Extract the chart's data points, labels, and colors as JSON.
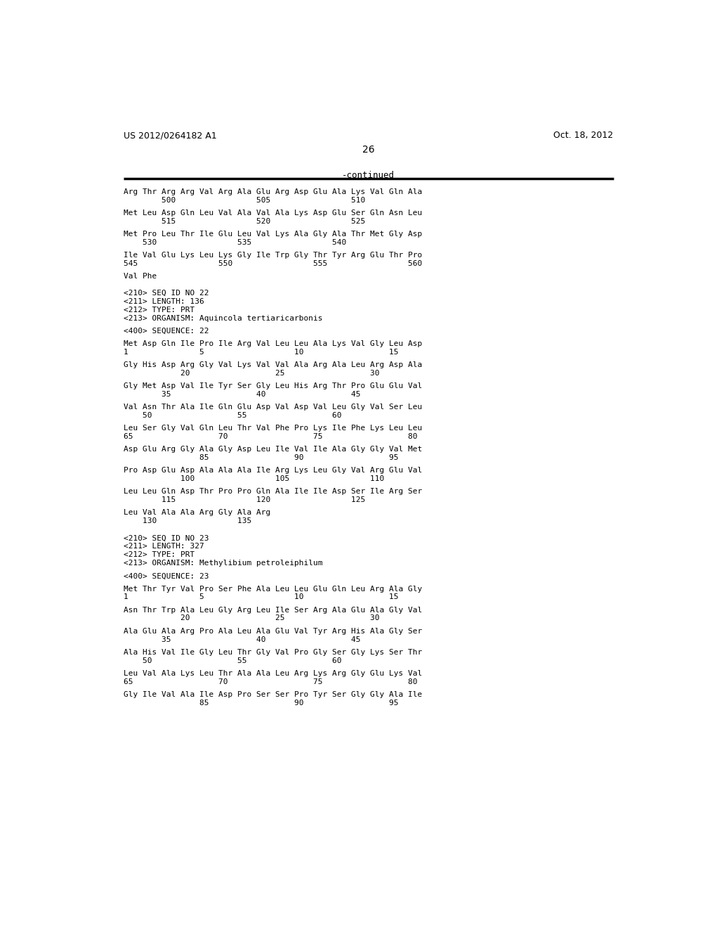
{
  "header_left": "US 2012/0264182 A1",
  "header_right": "Oct. 18, 2012",
  "page_number": "26",
  "continued_label": "-continued",
  "background_color": "#ffffff",
  "text_color": "#000000",
  "lines": [
    {
      "type": "seq",
      "text": "Arg Thr Arg Arg Val Arg Ala Glu Arg Asp Glu Ala Lys Val Gln Ala"
    },
    {
      "type": "num",
      "text": "        500                 505                 510"
    },
    {
      "type": "blank"
    },
    {
      "type": "seq",
      "text": "Met Leu Asp Gln Leu Val Ala Val Ala Lys Asp Glu Ser Gln Asn Leu"
    },
    {
      "type": "num",
      "text": "        515                 520                 525"
    },
    {
      "type": "blank"
    },
    {
      "type": "seq",
      "text": "Met Pro Leu Thr Ile Glu Leu Val Lys Ala Gly Ala Thr Met Gly Asp"
    },
    {
      "type": "num",
      "text": "    530                 535                 540"
    },
    {
      "type": "blank"
    },
    {
      "type": "seq",
      "text": "Ile Val Glu Lys Leu Lys Gly Ile Trp Gly Thr Tyr Arg Glu Thr Pro"
    },
    {
      "type": "num",
      "text": "545                 550                 555                 560"
    },
    {
      "type": "blank"
    },
    {
      "type": "seq",
      "text": "Val Phe"
    },
    {
      "type": "blank"
    },
    {
      "type": "blank"
    },
    {
      "type": "meta",
      "text": "<210> SEQ ID NO 22"
    },
    {
      "type": "meta",
      "text": "<211> LENGTH: 136"
    },
    {
      "type": "meta",
      "text": "<212> TYPE: PRT"
    },
    {
      "type": "meta",
      "text": "<213> ORGANISM: Aquincola tertiaricarbonis"
    },
    {
      "type": "blank"
    },
    {
      "type": "meta",
      "text": "<400> SEQUENCE: 22"
    },
    {
      "type": "blank"
    },
    {
      "type": "seq",
      "text": "Met Asp Gln Ile Pro Ile Arg Val Leu Leu Ala Lys Val Gly Leu Asp"
    },
    {
      "type": "num",
      "text": "1               5                   10                  15"
    },
    {
      "type": "blank"
    },
    {
      "type": "seq",
      "text": "Gly His Asp Arg Gly Val Lys Val Val Ala Arg Ala Leu Arg Asp Ala"
    },
    {
      "type": "num",
      "text": "            20                  25                  30"
    },
    {
      "type": "blank"
    },
    {
      "type": "seq",
      "text": "Gly Met Asp Val Ile Tyr Ser Gly Leu His Arg Thr Pro Glu Glu Val"
    },
    {
      "type": "num",
      "text": "        35                  40                  45"
    },
    {
      "type": "blank"
    },
    {
      "type": "seq",
      "text": "Val Asn Thr Ala Ile Gln Glu Asp Val Asp Val Leu Gly Val Ser Leu"
    },
    {
      "type": "num",
      "text": "    50                  55                  60"
    },
    {
      "type": "blank"
    },
    {
      "type": "seq",
      "text": "Leu Ser Gly Val Gln Leu Thr Val Phe Pro Lys Ile Phe Lys Leu Leu"
    },
    {
      "type": "num",
      "text": "65                  70                  75                  80"
    },
    {
      "type": "blank"
    },
    {
      "type": "seq",
      "text": "Asp Glu Arg Gly Ala Gly Asp Leu Ile Val Ile Ala Gly Gly Val Met"
    },
    {
      "type": "num",
      "text": "                85                  90                  95"
    },
    {
      "type": "blank"
    },
    {
      "type": "seq",
      "text": "Pro Asp Glu Asp Ala Ala Ala Ile Arg Lys Leu Gly Val Arg Glu Val"
    },
    {
      "type": "num",
      "text": "            100                 105                 110"
    },
    {
      "type": "blank"
    },
    {
      "type": "seq",
      "text": "Leu Leu Gln Asp Thr Pro Pro Gln Ala Ile Ile Asp Ser Ile Arg Ser"
    },
    {
      "type": "num",
      "text": "        115                 120                 125"
    },
    {
      "type": "blank"
    },
    {
      "type": "seq",
      "text": "Leu Val Ala Ala Arg Gly Ala Arg"
    },
    {
      "type": "num",
      "text": "    130                 135"
    },
    {
      "type": "blank"
    },
    {
      "type": "blank"
    },
    {
      "type": "meta",
      "text": "<210> SEQ ID NO 23"
    },
    {
      "type": "meta",
      "text": "<211> LENGTH: 327"
    },
    {
      "type": "meta",
      "text": "<212> TYPE: PRT"
    },
    {
      "type": "meta",
      "text": "<213> ORGANISM: Methylibium petroleiphilum"
    },
    {
      "type": "blank"
    },
    {
      "type": "meta",
      "text": "<400> SEQUENCE: 23"
    },
    {
      "type": "blank"
    },
    {
      "type": "seq",
      "text": "Met Thr Tyr Val Pro Ser Phe Ala Leu Leu Glu Gln Leu Arg Ala Gly"
    },
    {
      "type": "num",
      "text": "1               5                   10                  15"
    },
    {
      "type": "blank"
    },
    {
      "type": "seq",
      "text": "Asn Thr Trp Ala Leu Gly Arg Leu Ile Ser Arg Ala Glu Ala Gly Val"
    },
    {
      "type": "num",
      "text": "            20                  25                  30"
    },
    {
      "type": "blank"
    },
    {
      "type": "seq",
      "text": "Ala Glu Ala Arg Pro Ala Leu Ala Glu Val Tyr Arg His Ala Gly Ser"
    },
    {
      "type": "num",
      "text": "        35                  40                  45"
    },
    {
      "type": "blank"
    },
    {
      "type": "seq",
      "text": "Ala His Val Ile Gly Leu Thr Gly Val Pro Gly Ser Gly Lys Ser Thr"
    },
    {
      "type": "num",
      "text": "    50                  55                  60"
    },
    {
      "type": "blank"
    },
    {
      "type": "seq",
      "text": "Leu Val Ala Lys Leu Thr Ala Ala Leu Arg Lys Arg Gly Glu Lys Val"
    },
    {
      "type": "num",
      "text": "65                  70                  75                  80"
    },
    {
      "type": "blank"
    },
    {
      "type": "seq",
      "text": "Gly Ile Val Ala Ile Asp Pro Ser Ser Pro Tyr Ser Gly Gly Ala Ile"
    },
    {
      "type": "num",
      "text": "                85                  90                  95"
    }
  ]
}
